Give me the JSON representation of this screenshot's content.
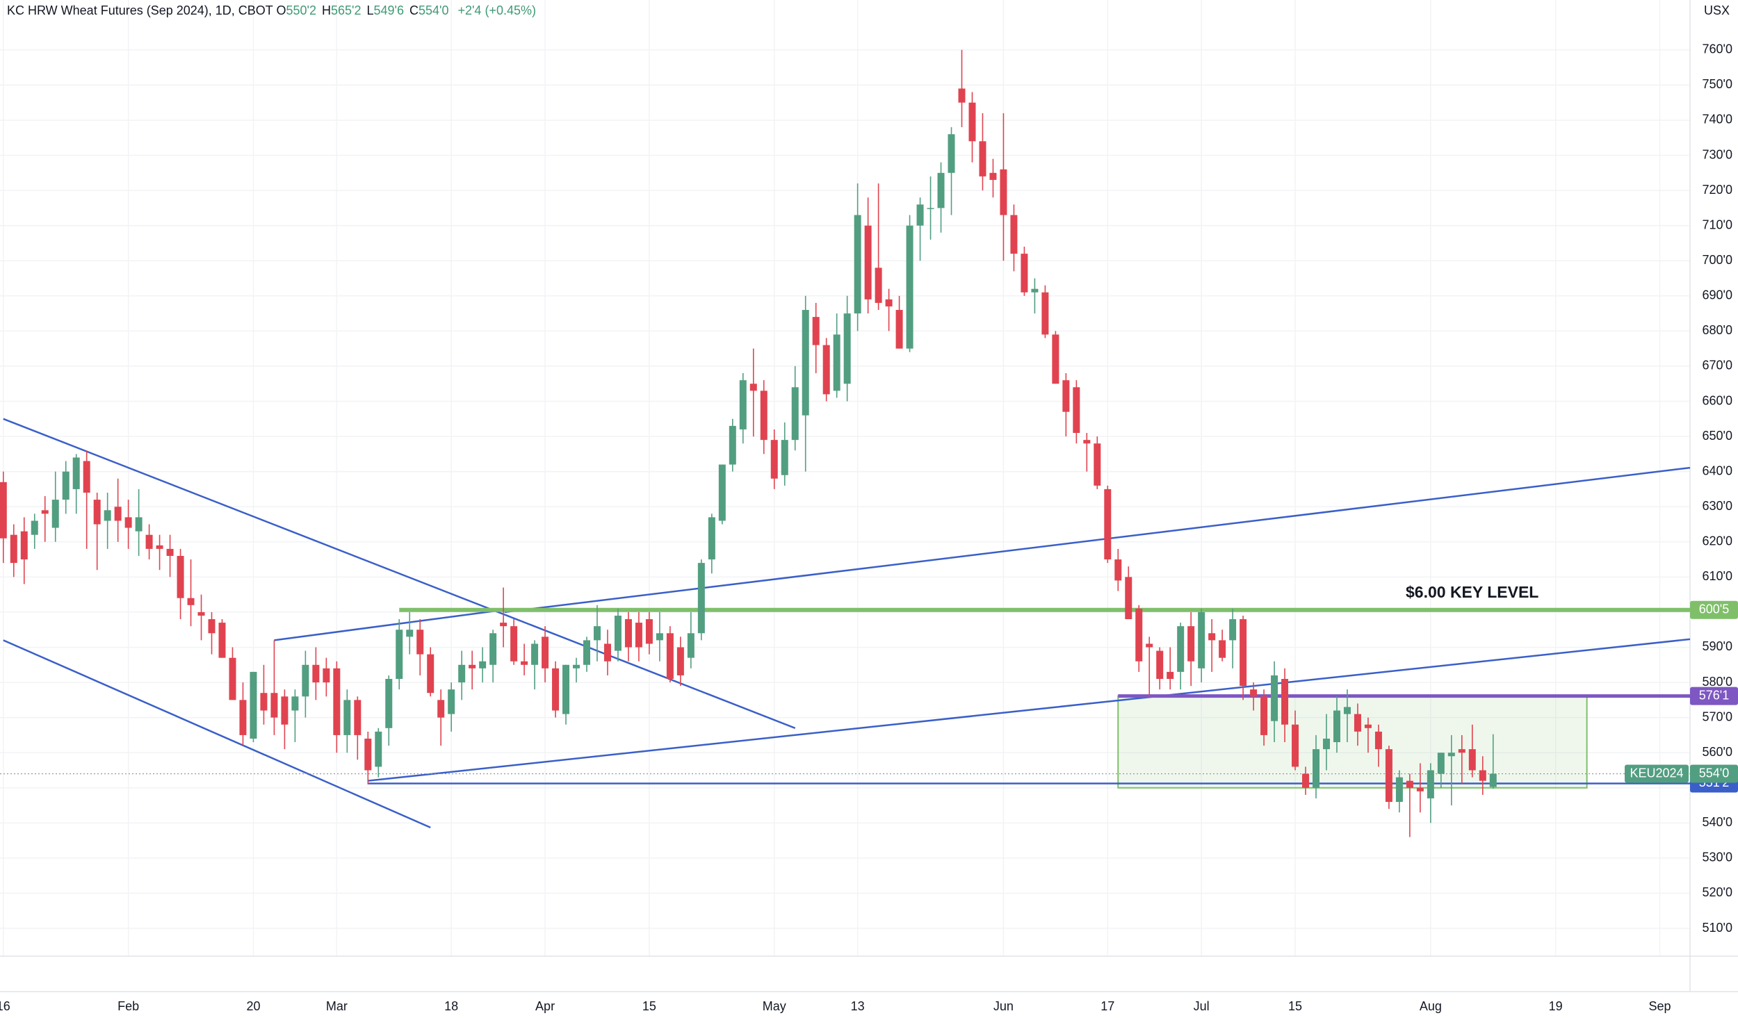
{
  "header": {
    "title": "KC HRW Wheat Futures (Sep 2024), 1D, CBOT",
    "ohlc": [
      {
        "key": "O",
        "value": "550'2"
      },
      {
        "key": "H",
        "value": "565'2"
      },
      {
        "key": "L",
        "value": "549'6"
      },
      {
        "key": "C",
        "value": "554'0"
      }
    ],
    "change": "+2'4 (+0.45%)",
    "currency": "USX"
  },
  "chart_data": {
    "type": "candlestick",
    "grid": true,
    "up_color": "#529e81",
    "down_color": "#e0434f",
    "xlim": [
      -0.32,
      161.9
    ],
    "ylim": [
      502.1,
      774.2
    ],
    "xticks": [
      {
        "value": 0,
        "label": "16"
      },
      {
        "value": 12,
        "label": "Feb"
      },
      {
        "value": 24,
        "label": "20"
      },
      {
        "value": 32,
        "label": "Mar"
      },
      {
        "value": 43,
        "label": "18"
      },
      {
        "value": 52,
        "label": "Apr"
      },
      {
        "value": 62,
        "label": "15"
      },
      {
        "value": 74,
        "label": "May"
      },
      {
        "value": 82,
        "label": "13"
      },
      {
        "value": 96,
        "label": "Jun"
      },
      {
        "value": 106,
        "label": "17"
      },
      {
        "value": 115,
        "label": "Jul"
      },
      {
        "value": 124,
        "label": "15"
      },
      {
        "value": 137,
        "label": "Aug"
      },
      {
        "value": 149,
        "label": "19"
      },
      {
        "value": 159,
        "label": "Sep"
      }
    ],
    "yticks": [
      {
        "value": 510,
        "label": "510'0"
      },
      {
        "value": 520,
        "label": "520'0"
      },
      {
        "value": 530,
        "label": "530'0"
      },
      {
        "value": 540,
        "label": "540'0"
      },
      {
        "value": 550,
        "label": "550'0"
      },
      {
        "value": 560,
        "label": "560'0"
      },
      {
        "value": 570,
        "label": "570'0"
      },
      {
        "value": 580,
        "label": "580'0"
      },
      {
        "value": 590,
        "label": "590'0"
      },
      {
        "value": 600,
        "label": "600'0"
      },
      {
        "value": 610,
        "label": "610'0"
      },
      {
        "value": 620,
        "label": "620'0"
      },
      {
        "value": 630,
        "label": "630'0"
      },
      {
        "value": 640,
        "label": "640'0"
      },
      {
        "value": 650,
        "label": "650'0"
      },
      {
        "value": 660,
        "label": "660'0"
      },
      {
        "value": 670,
        "label": "670'0"
      },
      {
        "value": 680,
        "label": "680'0"
      },
      {
        "value": 690,
        "label": "690'0"
      },
      {
        "value": 700,
        "label": "700'0"
      },
      {
        "value": 710,
        "label": "710'0"
      },
      {
        "value": 720,
        "label": "720'0"
      },
      {
        "value": 730,
        "label": "730'0"
      },
      {
        "value": 740,
        "label": "740'0"
      },
      {
        "value": 750,
        "label": "750'0"
      },
      {
        "value": 760,
        "label": "760'0"
      }
    ],
    "open": [
      637,
      622,
      623,
      622,
      629,
      624,
      632,
      635,
      643,
      632,
      626,
      630,
      627,
      623,
      622,
      619,
      618,
      616,
      604,
      600,
      598,
      597,
      587,
      575,
      564,
      577,
      577,
      576,
      572,
      576,
      585,
      584,
      584,
      565,
      575,
      564,
      556,
      567,
      581,
      593,
      595,
      588,
      575,
      571,
      580,
      585,
      584,
      585,
      597,
      596,
      586,
      585,
      593,
      584,
      571,
      584,
      585,
      592,
      591,
      589,
      598,
      597,
      598,
      592,
      594,
      590,
      587,
      594,
      615,
      626,
      642,
      652,
      665,
      663,
      649,
      639,
      649,
      656,
      684,
      676,
      663,
      665,
      685,
      710,
      698,
      689,
      686,
      675,
      710,
      715,
      715,
      725,
      749,
      745,
      734,
      725,
      726,
      713,
      702,
      691,
      691,
      679,
      666,
      664,
      649,
      648,
      635,
      615,
      610,
      601,
      591,
      589,
      583,
      583,
      596,
      584,
      594,
      592,
      592,
      598,
      578,
      576,
      569,
      581,
      568,
      554,
      550,
      561,
      563,
      571,
      571,
      568,
      566,
      561,
      546,
      552,
      550,
      547,
      554,
      559,
      561,
      561,
      555,
      550.25
    ],
    "high": [
      640,
      625,
      627,
      628,
      633,
      640,
      643,
      645,
      646,
      634,
      634,
      638,
      632,
      635,
      625,
      622,
      622,
      618,
      615,
      605,
      600,
      598,
      590,
      580,
      583,
      585,
      592,
      578,
      578,
      589,
      590,
      587,
      586,
      578,
      576,
      566,
      567,
      582,
      598,
      600,
      598,
      590,
      578,
      580,
      589,
      589,
      590,
      595,
      607,
      598,
      591,
      592,
      596,
      586,
      585,
      587,
      593,
      602,
      595,
      601,
      600,
      600,
      600,
      600,
      596,
      593,
      600,
      615,
      628,
      642,
      655,
      668,
      675,
      666,
      652,
      654,
      670,
      690,
      688,
      678,
      685,
      690,
      722,
      718,
      722,
      692,
      690,
      713,
      718,
      724,
      728,
      738,
      760,
      748,
      742,
      729,
      742,
      716,
      704,
      695,
      693,
      680,
      668,
      666,
      651,
      650,
      636,
      618,
      613,
      602,
      593,
      590,
      590,
      597,
      600,
      601,
      598,
      595,
      601,
      599,
      580,
      578,
      586,
      584,
      572,
      556,
      565,
      571,
      576,
      578,
      574,
      570,
      568,
      562,
      555,
      554,
      557,
      557,
      560,
      565,
      565,
      568,
      559,
      565.25
    ],
    "low": [
      614,
      610,
      608,
      618,
      620,
      620,
      628,
      628,
      618,
      612,
      618,
      620,
      618,
      616,
      615,
      612,
      610,
      598,
      596,
      592,
      588,
      587,
      575,
      562,
      563,
      568,
      565,
      561,
      563,
      570,
      575,
      576,
      560,
      560,
      558,
      551,
      553,
      562,
      578,
      588,
      582,
      576,
      562,
      566,
      575,
      578,
      580,
      580,
      590,
      585,
      582,
      578,
      580,
      570,
      568,
      580,
      583,
      586,
      582,
      586,
      586,
      586,
      588,
      586,
      580,
      579,
      584,
      592,
      611,
      625,
      640,
      648,
      650,
      645,
      635,
      636,
      646,
      640,
      668,
      660,
      661,
      660,
      680,
      685,
      686,
      680,
      675,
      674,
      700,
      706,
      708,
      713,
      738,
      728,
      720,
      718,
      700,
      697,
      690,
      685,
      678,
      665,
      650,
      648,
      640,
      635,
      614,
      606,
      598,
      583,
      576,
      578,
      578,
      578,
      579,
      580,
      583,
      586,
      584,
      575,
      572,
      562,
      563,
      563,
      555,
      548,
      547,
      555,
      560,
      563,
      562,
      560,
      556,
      544,
      543,
      536,
      543,
      540,
      550,
      545,
      551,
      553,
      548,
      549.75
    ],
    "close": [
      621,
      614,
      615,
      626,
      628,
      632,
      640,
      644,
      634,
      625,
      629,
      626,
      624,
      627,
      618,
      618,
      616,
      604,
      602,
      599,
      594,
      587,
      575,
      565,
      583,
      572,
      570,
      568,
      576,
      585,
      580,
      580,
      565,
      575,
      565,
      555,
      566,
      581,
      595,
      595,
      588,
      577,
      570,
      578,
      585,
      584,
      586,
      594,
      596,
      586,
      585,
      591,
      584,
      572,
      585,
      585,
      592,
      596,
      586,
      599,
      590,
      590,
      591,
      594,
      581,
      582,
      594,
      614,
      627,
      642,
      653,
      666,
      663,
      649,
      638,
      649,
      664,
      686,
      676,
      662,
      679,
      685,
      713,
      689,
      688,
      687,
      675,
      710,
      716,
      715,
      725,
      736,
      745,
      734,
      724,
      723,
      713,
      702,
      691,
      692,
      679,
      665,
      657,
      651,
      648,
      636,
      615,
      609,
      598,
      586,
      590,
      581,
      581,
      596,
      586,
      600,
      592,
      587,
      598,
      579,
      576,
      565,
      582,
      568,
      556,
      550,
      561,
      564,
      572,
      573,
      566,
      567,
      561,
      546,
      553,
      550,
      549,
      555,
      560,
      560,
      560,
      555,
      552,
      554
    ],
    "trendlines": [
      {
        "x": [
          0,
          76
        ],
        "y": [
          655,
          567
        ],
        "color": "#3a5fc8"
      },
      {
        "x": [
          0,
          41
        ],
        "y": [
          592,
          538.7
        ],
        "color": "#3a5fc8"
      },
      {
        "x": [
          26,
          48.4
        ],
        "y": [
          592,
          600.8
        ],
        "color": "#3a5fc8"
      },
      {
        "x": [
          35,
          161.9
        ],
        "y": [
          552,
          592.3
        ],
        "color": "#3a5fc8"
      },
      {
        "x": [
          48.1,
          161.9
        ],
        "y": [
          600,
          641.1
        ],
        "color": "#3a5fc8"
      }
    ],
    "levels": [
      {
        "value": 600.625,
        "label": "600'5",
        "color": "#7fbf6a",
        "start": 38
      },
      {
        "value": 576.125,
        "label": "576'1",
        "color": "#7e57c2",
        "start": 107
      },
      {
        "value": 551.25,
        "label": "551'2",
        "color": "#3a5fc8",
        "start": 35
      }
    ],
    "zone": {
      "x": [
        107,
        152
      ],
      "y": [
        550,
        576.125
      ],
      "color": "#7fbf6a"
    },
    "last_price": {
      "name": "KEU2024",
      "value": 554,
      "label": "554'0",
      "color": "#529e81"
    },
    "annotation": "$6.00 KEY LEVEL"
  }
}
